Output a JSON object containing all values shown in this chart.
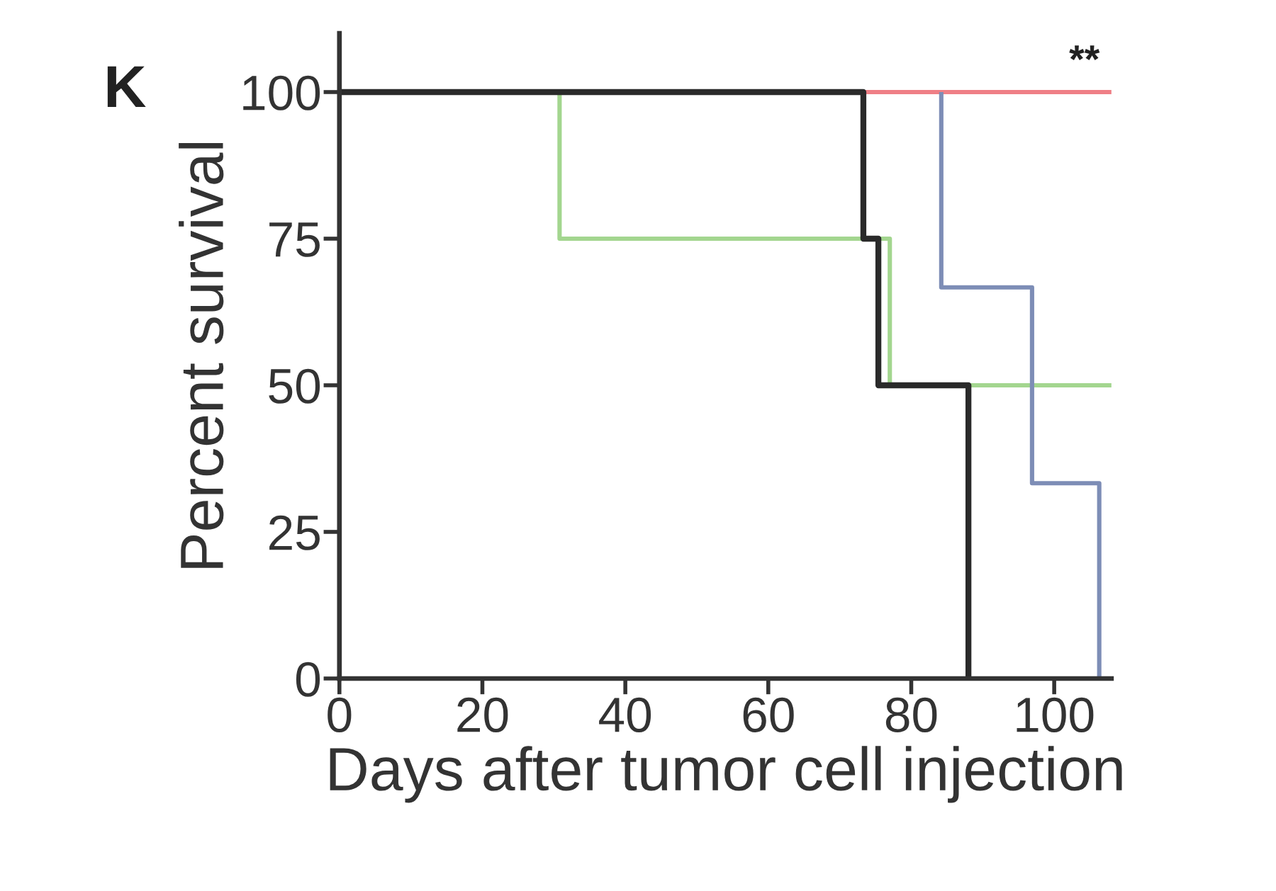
{
  "chart_data": {
    "type": "step",
    "title": "K",
    "xlabel": "Days after tumor cell injection",
    "ylabel": "Percent survival",
    "annotations": [
      "**"
    ],
    "xlim": [
      0,
      108
    ],
    "ylim": [
      0,
      110
    ],
    "xticks": [
      0,
      20,
      40,
      60,
      80,
      100
    ],
    "yticks": [
      0,
      25,
      50,
      75,
      100
    ],
    "series": [
      {
        "color": "#ef7f86",
        "x": [
          73.3,
          108
        ],
        "values": [
          100,
          100
        ]
      },
      {
        "color": "#a3d68f",
        "x": [
          30.8,
          30.8,
          77,
          108
        ],
        "values": [
          100,
          75,
          50,
          50
        ]
      },
      {
        "color": "#7d8db6",
        "x": [
          84.2,
          84.2,
          96.9,
          106.3
        ],
        "values": [
          100,
          66.7,
          33.3,
          0
        ]
      },
      {
        "color": "#2a2a2a",
        "x": [
          0,
          73.3,
          75.4,
          88
        ],
        "values": [
          100,
          75,
          50,
          0
        ]
      }
    ]
  }
}
